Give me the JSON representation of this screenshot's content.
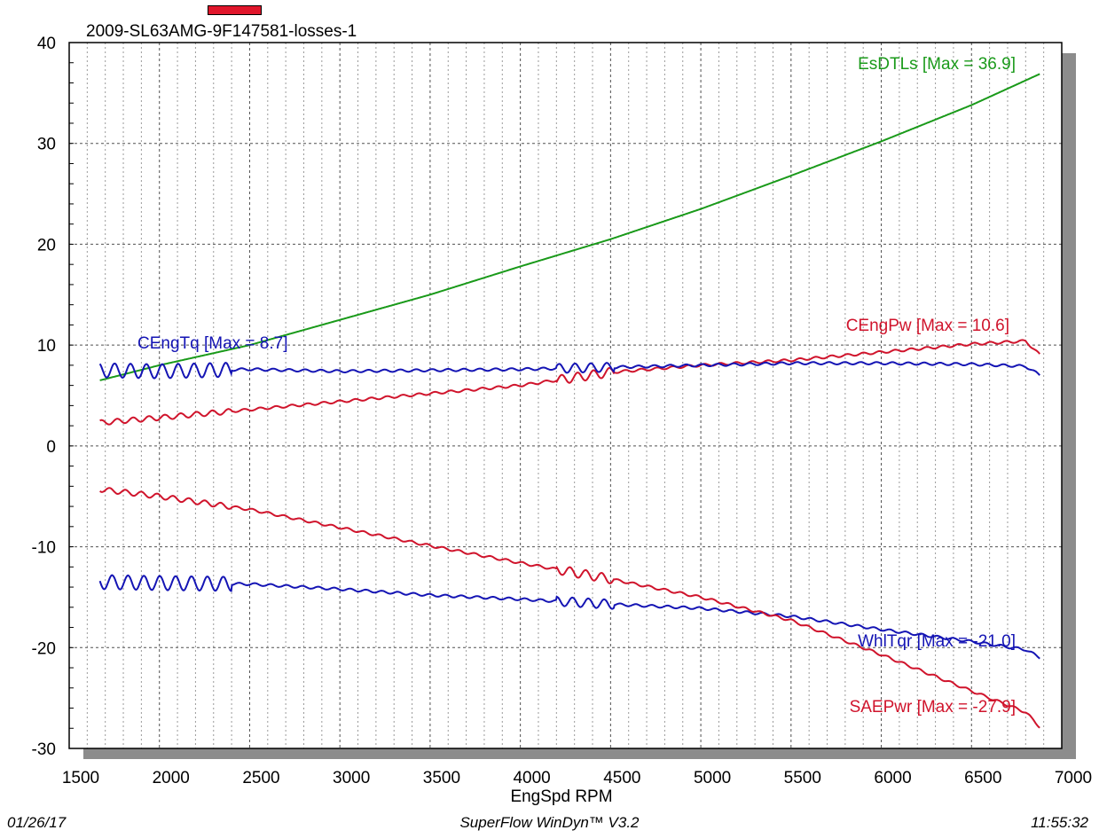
{
  "header": {
    "title": "2009-SL63AMG-9F147581-losses-1",
    "marker_color": "#e0162b"
  },
  "footer": {
    "date": "01/26/17",
    "app": "SuperFlow WinDyn™ V3.2",
    "time": "11:55:32"
  },
  "chart_data": {
    "type": "line",
    "title": "2009-SL63AMG-9F147581-losses-1",
    "xlabel": "EngSpd RPM",
    "ylabel": "",
    "xlim": [
      1500,
      7000
    ],
    "ylim": [
      -30,
      40
    ],
    "x_ticks": [
      1500,
      2000,
      2500,
      3000,
      3500,
      4000,
      4500,
      5000,
      5500,
      6000,
      6500,
      7000
    ],
    "y_ticks": [
      -30,
      -20,
      -10,
      0,
      10,
      20,
      30,
      40
    ],
    "grid": true,
    "legend": "inline labels",
    "series": [
      {
        "name": "EsDTLs",
        "label": "EsDTLs [Max = 36.9]",
        "color": "#1a9a1a",
        "x": [
          1670,
          2000,
          2500,
          3000,
          3500,
          4000,
          4500,
          5000,
          5500,
          6000,
          6500,
          6880
        ],
        "y": [
          6.5,
          8.0,
          10.0,
          12.5,
          15.0,
          17.8,
          20.5,
          23.5,
          26.8,
          30.2,
          33.8,
          36.9
        ]
      },
      {
        "name": "CEngPw",
        "label": "CEngPw [Max = 10.6]",
        "color": "#d0142c",
        "x": [
          1670,
          2000,
          2500,
          3000,
          3500,
          4000,
          4500,
          5000,
          5500,
          6000,
          6500,
          6800,
          6880
        ],
        "y": [
          2.3,
          2.8,
          3.6,
          4.4,
          5.2,
          6.0,
          7.3,
          8.0,
          8.5,
          9.3,
          10.1,
          10.4,
          9.0
        ]
      },
      {
        "name": "CEngTq",
        "label": "CEngTq [Max = 8.7]",
        "color": "#1414b4",
        "x": [
          1670,
          2000,
          2500,
          3000,
          3500,
          4000,
          4500,
          5000,
          5500,
          6000,
          6500,
          6800,
          6880
        ],
        "y": [
          7.5,
          7.4,
          7.6,
          7.4,
          7.5,
          7.6,
          7.8,
          8.0,
          8.2,
          8.2,
          8.1,
          7.9,
          7.0
        ]
      },
      {
        "name": "WhlTqr",
        "label": "WhlTqr [Max = -21.0]",
        "color": "#1414b4",
        "x": [
          1670,
          2000,
          2500,
          3000,
          3500,
          4000,
          4500,
          5000,
          5500,
          6000,
          6500,
          6800,
          6880
        ],
        "y": [
          -13.5,
          -13.6,
          -13.7,
          -14.2,
          -14.8,
          -15.2,
          -15.7,
          -16.1,
          -16.9,
          -18.2,
          -19.4,
          -20.2,
          -21.0
        ]
      },
      {
        "name": "SAEPwr",
        "label": "SAEPwr [Max = -27.9]",
        "color": "#d0142c",
        "x": [
          1670,
          2000,
          2500,
          3000,
          3500,
          4000,
          4500,
          5000,
          5500,
          6000,
          6500,
          6800,
          6880
        ],
        "y": [
          -4.3,
          -5.0,
          -6.3,
          -8.1,
          -9.9,
          -11.6,
          -13.2,
          -15.0,
          -17.3,
          -20.7,
          -24.3,
          -26.4,
          -27.9
        ]
      }
    ]
  }
}
